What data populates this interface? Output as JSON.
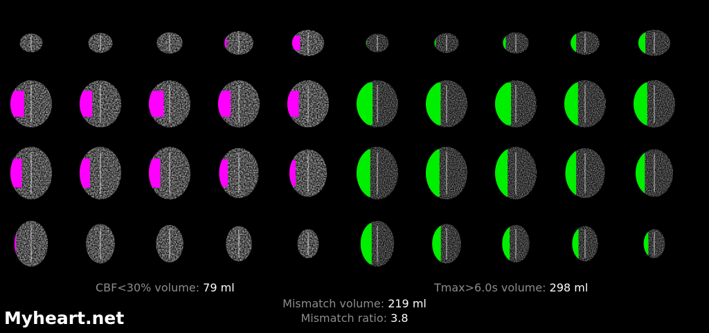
{
  "image": {
    "background": "#000000",
    "panels": [
      {
        "name": "cbf-panel",
        "overlay_color": "#ff00ff",
        "lesion_side": "left",
        "rows": [
          [
            0,
            0,
            0,
            0.15,
            0.45
          ],
          [
            0.6,
            0.55,
            0.65,
            0.55,
            0.5
          ],
          [
            0.5,
            0.45,
            0.5,
            0.4,
            0.3
          ],
          [
            0.1,
            0,
            0,
            0,
            0
          ]
        ]
      },
      {
        "name": "tmax-panel",
        "overlay_color": "#00ee00",
        "lesion_side": "left",
        "rows": [
          [
            0.05,
            0.1,
            0.2,
            0.35,
            0.4
          ],
          [
            0.7,
            0.65,
            0.7,
            0.6,
            0.6
          ],
          [
            0.6,
            0.6,
            0.55,
            0.5,
            0.45
          ],
          [
            0.6,
            0.55,
            0.5,
            0.45,
            0.4
          ]
        ]
      }
    ]
  },
  "stats": {
    "cbf_label": "CBF<30% volume:",
    "cbf_value": "79 ml",
    "tmax_label": "Tmax>6.0s volume:",
    "tmax_value": "298 ml",
    "mismatch_volume_label": "Mismatch volume:",
    "mismatch_volume_value": "219 ml",
    "mismatch_ratio_label": "Mismatch ratio:",
    "mismatch_ratio_value": "3.8"
  },
  "watermark": "Myheart.net"
}
